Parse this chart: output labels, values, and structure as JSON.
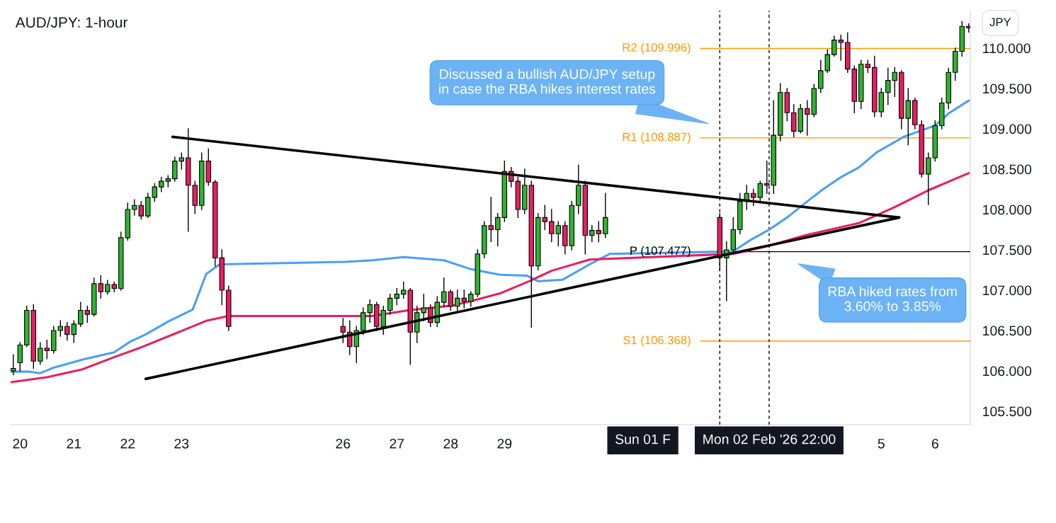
{
  "chart_data": {
    "type": "candlestick",
    "title": "AUD/JPY: 1-hour",
    "ylabel": "JPY",
    "x": [
      "2026-01-19T21:00",
      "2026-01-20T00:00",
      "2026-01-20T03:00",
      "2026-01-20T06:00",
      "2026-01-20T09:00",
      "2026-01-20T12:00",
      "2026-01-20T15:00",
      "2026-01-20T18:00",
      "2026-01-20T21:00",
      "2026-01-21T00:00",
      "2026-01-21T03:00",
      "2026-01-21T06:00",
      "2026-01-21T09:00",
      "2026-01-21T12:00",
      "2026-01-21T15:00",
      "2026-01-21T18:00",
      "2026-01-21T21:00",
      "2026-01-22T00:00",
      "2026-01-22T03:00",
      "2026-01-22T06:00",
      "2026-01-22T09:00",
      "2026-01-22T12:00",
      "2026-01-22T15:00",
      "2026-01-22T18:00",
      "2026-01-22T21:00",
      "2026-01-23T00:00",
      "2026-01-23T03:00",
      "2026-01-23T06:00",
      "2026-01-23T09:00",
      "2026-01-23T12:00",
      "2026-01-23T15:00",
      "2026-01-23T18:00",
      "2026-01-23T21:00",
      "2026-01-26T00:00",
      "2026-01-26T03:00",
      "2026-01-26T06:00",
      "2026-01-26T09:00",
      "2026-01-26T12:00",
      "2026-01-26T15:00",
      "2026-01-26T18:00",
      "2026-01-26T21:00",
      "2026-01-27T00:00",
      "2026-01-27T03:00",
      "2026-01-27T06:00",
      "2026-01-27T09:00",
      "2026-01-27T12:00",
      "2026-01-27T15:00",
      "2026-01-27T18:00",
      "2026-01-27T21:00",
      "2026-01-28T00:00",
      "2026-01-28T03:00",
      "2026-01-28T06:00",
      "2026-01-28T09:00",
      "2026-01-28T12:00",
      "2026-01-28T15:00",
      "2026-01-28T18:00",
      "2026-01-28T21:00",
      "2026-01-29T00:00",
      "2026-01-29T03:00",
      "2026-01-29T06:00",
      "2026-01-29T09:00",
      "2026-01-29T12:00",
      "2026-01-29T15:00",
      "2026-01-29T18:00",
      "2026-01-29T21:00",
      "2026-01-30T00:00",
      "2026-01-30T03:00",
      "2026-01-30T06:00",
      "2026-01-30T09:00",
      "2026-01-30T12:00",
      "2026-01-30T15:00",
      "2026-01-30T18:00",
      "2026-01-30T21:00",
      "2026-02-02T00:00",
      "2026-02-02T03:00",
      "2026-02-02T06:00",
      "2026-02-02T09:00",
      "2026-02-02T12:00",
      "2026-02-02T15:00",
      "2026-02-02T18:00",
      "2026-02-02T21:00",
      "2026-02-03T00:00",
      "2026-02-03T03:00",
      "2026-02-03T06:00",
      "2026-02-03T09:00",
      "2026-02-03T12:00",
      "2026-02-03T15:00",
      "2026-02-03T18:00",
      "2026-02-03T21:00",
      "2026-02-04T00:00",
      "2026-02-04T03:00",
      "2026-02-04T06:00",
      "2026-02-04T09:00",
      "2026-02-04T12:00",
      "2026-02-04T15:00",
      "2026-02-04T18:00",
      "2026-02-04T21:00",
      "2026-02-05T00:00",
      "2026-02-05T03:00",
      "2026-02-05T06:00",
      "2026-02-05T09:00",
      "2026-02-05T12:00",
      "2026-02-05T15:00",
      "2026-02-05T18:00",
      "2026-02-05T21:00",
      "2026-02-06T00:00",
      "2026-02-06T03:00",
      "2026-02-06T06:00",
      "2026-02-06T09:00",
      "2026-02-06T12:00",
      "2026-02-06T15:00"
    ],
    "ohlc": [
      [
        106.0,
        106.2,
        105.95,
        106.03
      ],
      [
        106.1,
        106.35,
        106.0,
        106.32
      ],
      [
        106.32,
        106.8,
        106.3,
        106.75
      ],
      [
        106.75,
        106.82,
        106.03,
        106.12
      ],
      [
        106.12,
        106.35,
        106.08,
        106.28
      ],
      [
        106.28,
        106.38,
        106.15,
        106.25
      ],
      [
        106.25,
        106.55,
        106.22,
        106.5
      ],
      [
        106.5,
        106.62,
        106.43,
        106.55
      ],
      [
        106.55,
        106.6,
        106.38,
        106.45
      ],
      [
        106.45,
        106.62,
        106.35,
        106.58
      ],
      [
        106.58,
        106.85,
        106.55,
        106.75
      ],
      [
        106.75,
        106.8,
        106.6,
        106.7
      ],
      [
        106.7,
        107.15,
        106.68,
        107.08
      ],
      [
        107.08,
        107.18,
        106.9,
        106.98
      ],
      [
        106.98,
        107.12,
        106.95,
        107.07
      ],
      [
        107.07,
        107.1,
        106.98,
        107.02
      ],
      [
        107.02,
        107.72,
        107.0,
        107.65
      ],
      [
        107.65,
        108.08,
        107.62,
        108.0
      ],
      [
        108.0,
        108.12,
        107.93,
        108.05
      ],
      [
        108.05,
        108.1,
        107.88,
        107.92
      ],
      [
        107.92,
        108.2,
        107.9,
        108.15
      ],
      [
        108.15,
        108.32,
        108.1,
        108.28
      ],
      [
        108.28,
        108.4,
        108.22,
        108.35
      ],
      [
        108.35,
        108.42,
        108.28,
        108.38
      ],
      [
        108.38,
        108.65,
        108.35,
        108.6
      ],
      [
        108.6,
        108.7,
        108.5,
        108.64
      ],
      [
        108.64,
        109.0,
        107.73,
        108.3
      ],
      [
        108.3,
        108.35,
        107.95,
        108.05
      ],
      [
        108.05,
        108.7,
        108.0,
        108.6
      ],
      [
        108.6,
        108.75,
        108.3,
        108.34
      ],
      [
        108.34,
        108.36,
        107.3,
        107.4
      ],
      [
        107.4,
        107.5,
        106.82,
        107.0
      ],
      [
        107.0,
        107.05,
        106.5,
        106.55
      ],
      [
        106.55,
        106.65,
        106.35,
        106.48
      ],
      [
        106.48,
        106.62,
        106.2,
        106.3
      ],
      [
        106.3,
        106.55,
        106.1,
        106.5
      ],
      [
        106.5,
        106.78,
        106.45,
        106.72
      ],
      [
        106.72,
        106.88,
        106.6,
        106.82
      ],
      [
        106.82,
        106.85,
        106.5,
        106.55
      ],
      [
        106.55,
        106.8,
        106.45,
        106.75
      ],
      [
        106.75,
        106.95,
        106.7,
        106.9
      ],
      [
        106.9,
        107.02,
        106.82,
        106.95
      ],
      [
        106.95,
        107.1,
        106.9,
        107.0
      ],
      [
        107.0,
        107.02,
        106.08,
        106.48
      ],
      [
        106.48,
        106.8,
        106.35,
        106.72
      ],
      [
        106.72,
        106.95,
        106.62,
        106.78
      ],
      [
        106.78,
        106.82,
        106.55,
        106.6
      ],
      [
        106.6,
        106.92,
        106.55,
        106.85
      ],
      [
        106.85,
        107.15,
        106.8,
        106.98
      ],
      [
        106.98,
        107.0,
        106.75,
        106.8
      ],
      [
        106.8,
        107.0,
        106.75,
        106.9
      ],
      [
        106.9,
        107.0,
        106.78,
        106.86
      ],
      [
        106.86,
        106.98,
        106.8,
        106.95
      ],
      [
        106.95,
        107.5,
        106.92,
        107.45
      ],
      [
        107.45,
        107.85,
        107.4,
        107.8
      ],
      [
        107.8,
        108.15,
        107.6,
        107.75
      ],
      [
        107.75,
        107.95,
        107.55,
        107.9
      ],
      [
        107.9,
        108.6,
        107.85,
        108.47
      ],
      [
        108.47,
        108.52,
        108.28,
        108.35
      ],
      [
        108.35,
        108.4,
        107.9,
        108.0
      ],
      [
        108.0,
        108.5,
        107.95,
        108.3
      ],
      [
        108.3,
        108.35,
        106.54,
        107.3
      ],
      [
        107.3,
        107.95,
        107.25,
        107.9
      ],
      [
        107.9,
        108.05,
        107.75,
        107.85
      ],
      [
        107.85,
        108.0,
        107.6,
        107.7
      ],
      [
        107.7,
        107.85,
        107.55,
        107.8
      ],
      [
        107.8,
        107.85,
        107.45,
        107.55
      ],
      [
        107.55,
        108.1,
        107.5,
        108.05
      ],
      [
        108.05,
        108.55,
        107.95,
        108.3
      ],
      [
        108.3,
        108.35,
        107.45,
        107.68
      ],
      [
        107.68,
        107.8,
        107.6,
        107.74
      ],
      [
        107.74,
        107.85,
        107.6,
        107.7
      ],
      [
        107.7,
        108.2,
        107.65,
        107.9
      ],
      [
        107.9,
        107.95,
        107.25,
        107.4
      ],
      [
        107.4,
        107.6,
        106.87,
        107.5
      ],
      [
        107.5,
        107.9,
        107.45,
        107.75
      ],
      [
        107.75,
        108.2,
        107.7,
        108.1
      ],
      [
        108.1,
        108.3,
        108.0,
        108.2
      ],
      [
        108.2,
        108.25,
        108.05,
        108.15
      ],
      [
        108.15,
        108.35,
        108.1,
        108.32
      ],
      [
        108.32,
        108.6,
        108.2,
        108.3
      ],
      [
        108.3,
        109.35,
        108.2,
        108.92
      ],
      [
        108.92,
        109.56,
        108.85,
        109.45
      ],
      [
        109.45,
        109.5,
        109.1,
        109.2
      ],
      [
        109.2,
        109.3,
        108.9,
        108.97
      ],
      [
        108.97,
        109.3,
        108.95,
        109.25
      ],
      [
        109.25,
        109.35,
        108.92,
        109.18
      ],
      [
        109.18,
        109.55,
        109.15,
        109.5
      ],
      [
        109.5,
        109.85,
        109.45,
        109.72
      ],
      [
        109.72,
        109.98,
        109.7,
        109.92
      ],
      [
        109.92,
        110.15,
        109.9,
        110.1
      ],
      [
        110.1,
        110.16,
        109.85,
        110.07
      ],
      [
        110.07,
        110.19,
        109.7,
        109.74
      ],
      [
        109.74,
        109.78,
        109.2,
        109.34
      ],
      [
        109.34,
        109.85,
        109.25,
        109.8
      ],
      [
        109.8,
        109.85,
        109.7,
        109.76
      ],
      [
        109.76,
        109.9,
        109.15,
        109.21
      ],
      [
        109.21,
        109.5,
        109.15,
        109.45
      ],
      [
        109.45,
        109.75,
        109.3,
        109.6
      ],
      [
        109.6,
        109.76,
        109.4,
        109.7
      ],
      [
        109.7,
        109.72,
        109.0,
        109.13
      ],
      [
        109.13,
        109.5,
        108.8,
        109.35
      ],
      [
        109.35,
        109.38,
        109.0,
        109.05
      ],
      [
        109.05,
        109.1,
        108.4,
        108.44
      ],
      [
        108.44,
        108.7,
        108.06,
        108.64
      ],
      [
        108.64,
        109.1,
        108.6,
        109.04
      ],
      [
        109.04,
        109.38,
        109.0,
        109.32
      ],
      [
        109.32,
        109.75,
        109.25,
        109.7
      ],
      [
        109.7,
        110.0,
        109.6,
        109.96
      ],
      [
        109.96,
        110.33,
        109.9,
        110.27
      ],
      [
        110.27,
        110.3,
        110.2,
        110.25
      ]
    ],
    "colors": [
      "#2fb52f",
      "#2fb52f",
      "#2fb52f",
      "#e91e63",
      "#2fb52f",
      "#e91e63",
      "#2fb52f",
      "#2fb52f",
      "#e91e63",
      "#2fb52f",
      "#2fb52f",
      "#e91e63",
      "#2fb52f",
      "#e91e63",
      "#2fb52f",
      "#e91e63",
      "#2fb52f",
      "#2fb52f",
      "#2fb52f",
      "#e91e63",
      "#2fb52f",
      "#2fb52f",
      "#2fb52f",
      "#2fb52f",
      "#2fb52f",
      "#2fb52f",
      "#e91e63",
      "#e91e63",
      "#2fb52f",
      "#e91e63",
      "#e91e63",
      "#e91e63",
      "#e91e63",
      "#e91e63",
      "#e91e63",
      "#2fb52f",
      "#2fb52f",
      "#2fb52f",
      "#e91e63",
      "#2fb52f",
      "#2fb52f",
      "#2fb52f",
      "#2fb52f",
      "#e91e63",
      "#2fb52f",
      "#2fb52f",
      "#e91e63",
      "#2fb52f",
      "#2fb52f",
      "#e91e63",
      "#2fb52f",
      "#e91e63",
      "#2fb52f",
      "#2fb52f",
      "#2fb52f",
      "#e91e63",
      "#2fb52f",
      "#2fb52f",
      "#e91e63",
      "#e91e63",
      "#2fb52f",
      "#e91e63",
      "#2fb52f",
      "#e91e63",
      "#e91e63",
      "#2fb52f",
      "#e91e63",
      "#2fb52f",
      "#2fb52f",
      "#e91e63",
      "#2fb52f",
      "#e91e63",
      "#2fb52f",
      "#e91e63",
      "#2fb52f",
      "#2fb52f",
      "#2fb52f",
      "#2fb52f",
      "#e91e63",
      "#2fb52f",
      "#e91e63",
      "#2fb52f",
      "#2fb52f",
      "#e91e63",
      "#e91e63",
      "#2fb52f",
      "#e91e63",
      "#2fb52f",
      "#2fb52f",
      "#2fb52f",
      "#2fb52f",
      "#e91e63",
      "#e91e63",
      "#e91e63",
      "#2fb52f",
      "#e91e63",
      "#e91e63",
      "#2fb52f",
      "#2fb52f",
      "#2fb52f",
      "#e91e63",
      "#2fb52f",
      "#e91e63",
      "#e91e63",
      "#2fb52f",
      "#2fb52f",
      "#2fb52f",
      "#2fb52f",
      "#2fb52f",
      "#2fb52f",
      "#e91e63"
    ],
    "series": [
      {
        "type": "line",
        "color": "#4a9ff5",
        "x": [
          "2026-01-19T20:00",
          "2026-01-20T04:00",
          "2026-01-20T09:00",
          "2026-01-20T15:00",
          "2026-01-21T04:00",
          "2026-01-21T18:00",
          "2026-01-22T01:00",
          "2026-01-22T08:00",
          "2026-01-22T18:00",
          "2026-01-23T05:00",
          "2026-01-23T11:00",
          "2026-01-23T17:00",
          "2026-01-26T01:00",
          "2026-01-26T13:00",
          "2026-01-27T03:00",
          "2026-01-27T21:00",
          "2026-01-28T09:00",
          "2026-01-28T22:00",
          "2026-01-29T10:00",
          "2026-01-29T15:00",
          "2026-01-30T02:00",
          "2026-01-30T14:00",
          "2026-01-30T23:00",
          "2026-02-02T06:00",
          "2026-02-02T13:00",
          "2026-02-02T22:00",
          "2026-02-03T06:00",
          "2026-02-03T15:00",
          "2026-02-03T22:00",
          "2026-02-04T06:00",
          "2026-02-04T14:00",
          "2026-02-04T22:00",
          "2026-02-05T10:00",
          "2026-02-06T00:00",
          "2026-02-06T06:00",
          "2026-02-06T15:00"
        ],
        "values": [
          105.99,
          105.99,
          105.97,
          106.04,
          106.14,
          106.23,
          106.36,
          106.45,
          106.61,
          106.76,
          107.2,
          107.32,
          107.35,
          107.37,
          107.41,
          107.37,
          107.26,
          107.19,
          107.18,
          107.11,
          107.13,
          107.32,
          107.45,
          107.48,
          107.61,
          107.75,
          107.9,
          108.1,
          108.25,
          108.4,
          108.52,
          108.71,
          108.9,
          109.04,
          109.19,
          109.35
        ]
      },
      {
        "type": "line",
        "color": "#e91e63",
        "x": [
          "2026-01-19T20:00",
          "2026-01-20T12:00",
          "2026-01-21T04:00",
          "2026-01-21T18:00",
          "2026-01-22T05:00",
          "2026-01-22T21:00",
          "2026-01-23T11:00",
          "2026-01-23T21:00",
          "2026-01-26T13:00",
          "2026-01-27T05:00",
          "2026-01-28T01:00",
          "2026-01-28T10:00",
          "2026-01-28T22:00",
          "2026-01-29T11:00",
          "2026-01-29T21:00",
          "2026-01-30T14:00",
          "2026-02-02T06:00",
          "2026-02-02T22:00",
          "2026-02-03T14:00",
          "2026-02-04T14:00",
          "2026-02-05T06:00",
          "2026-02-05T22:00",
          "2026-02-06T15:00"
        ],
        "values": [
          105.86,
          105.92,
          106.02,
          106.17,
          106.28,
          106.46,
          106.62,
          106.68,
          106.68,
          106.75,
          106.81,
          106.87,
          106.96,
          107.11,
          107.24,
          107.38,
          107.45,
          107.55,
          107.68,
          107.83,
          108.03,
          108.25,
          108.45
        ]
      },
      {
        "type": "line",
        "color": "#000000",
        "x": [
          "2026-01-22T20:00",
          "2026-02-05T08:00"
        ],
        "values": [
          108.9,
          107.9
        ]
      },
      {
        "type": "line",
        "color": "#000000",
        "x": [
          "2026-01-22T08:00",
          "2026-02-05T08:00"
        ],
        "values": [
          105.9,
          107.9
        ]
      }
    ],
    "xlim": [
      "2026-01-19T19:48",
      "2026-02-06T15:42"
    ],
    "xticks": [
      {
        "value": "2026-01-20",
        "label": "20"
      },
      {
        "value": "2026-01-21",
        "label": "21"
      },
      {
        "value": "2026-01-22",
        "label": "22"
      },
      {
        "value": "2026-01-23",
        "label": "23"
      },
      {
        "value": "2026-01-26",
        "label": "26"
      },
      {
        "value": "2026-01-27",
        "label": "27"
      },
      {
        "value": "2026-01-28",
        "label": "28"
      },
      {
        "value": "2026-01-29",
        "label": "29"
      },
      {
        "value": "2026-02-05",
        "label": "5"
      },
      {
        "value": "2026-02-06",
        "label": "6"
      }
    ],
    "ylim": [
      105.333,
      110.465
    ],
    "yticks": [
      {
        "value": 105.5,
        "label": "105.500"
      },
      {
        "value": 106.0,
        "label": "106.000"
      },
      {
        "value": 106.5,
        "label": "106.500"
      },
      {
        "value": 107.0,
        "label": "107.000"
      },
      {
        "value": 107.5,
        "label": "107.500"
      },
      {
        "value": 108.0,
        "label": "108.000"
      },
      {
        "value": 108.5,
        "label": "108.500"
      },
      {
        "value": 109.0,
        "label": "109.000"
      },
      {
        "value": 109.5,
        "label": "109.500"
      },
      {
        "value": 110.0,
        "label": "110.000"
      }
    ],
    "ref_lines": [
      {
        "axis": "y",
        "value": 109.996,
        "label": "R2 (109.996)",
        "color": "#ff9800"
      },
      {
        "axis": "y",
        "value": 108.887,
        "label": "R1 (108.887)",
        "color": "#ff9800"
      },
      {
        "axis": "y",
        "value": 107.477,
        "label": "P (107.477)",
        "color": "#000000"
      },
      {
        "axis": "y",
        "value": 106.368,
        "label": "S1 (106.368)",
        "color": "#ff9800"
      },
      {
        "axis": "x",
        "value": "2026-02-02T00:00",
        "color": "#000000",
        "line_style": "dashed"
      },
      {
        "axis": "x",
        "value": "2026-02-02T22:00",
        "color": "#000000",
        "line_style": "dashed"
      }
    ],
    "annotations": [
      "Discussed a bullish AUD/JPY setup\nin case the RBA hikes interest rates",
      "RBA hiked rates from\n3.60% to 3.85%",
      "Sun 01 F",
      "Mon 02 Feb '26 22:00"
    ],
    "grid": false
  }
}
